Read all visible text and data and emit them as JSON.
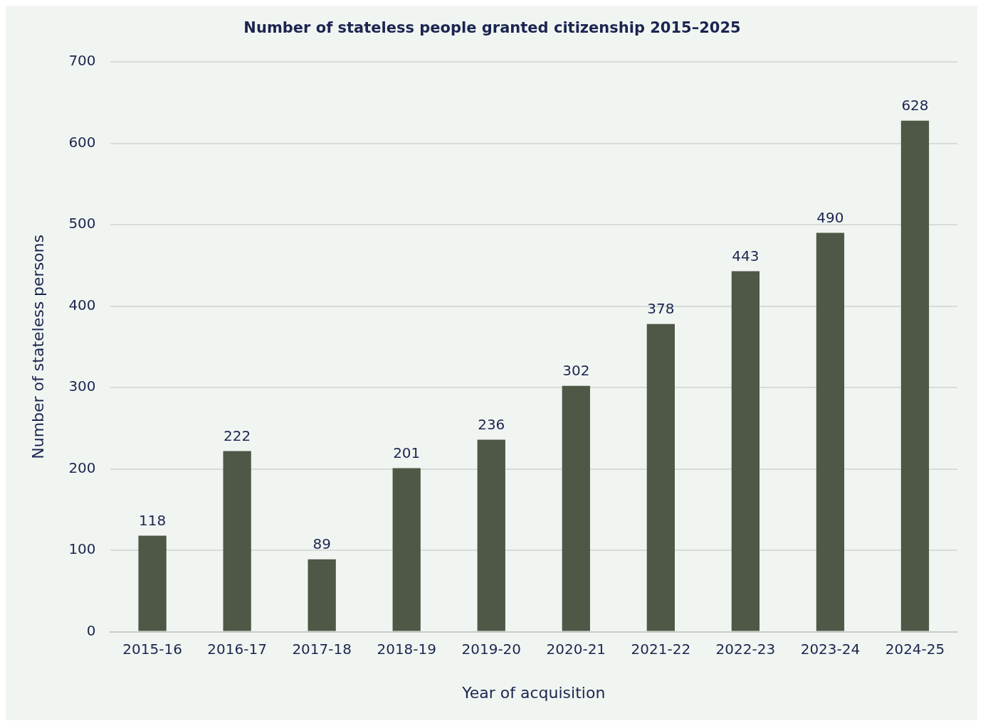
{
  "chart_data": {
    "type": "bar",
    "title": "Number of stateless people granted citizenship 2015–2025",
    "xlabel": "Year of acquisition",
    "ylabel": "Number of stateless persons",
    "categories": [
      "2015-16",
      "2016-17",
      "2017-18",
      "2018-19",
      "2019-20",
      "2020-21",
      "2021-22",
      "2022-23",
      "2023-24",
      "2024-25"
    ],
    "values": [
      118,
      222,
      89,
      201,
      236,
      302,
      378,
      443,
      490,
      628
    ],
    "color": "#4f5746",
    "ylim": [
      0,
      700
    ],
    "yticks": [
      0,
      100,
      200,
      300,
      400,
      500,
      600,
      700
    ],
    "grid": "y",
    "legend": false,
    "data_labels": true
  }
}
